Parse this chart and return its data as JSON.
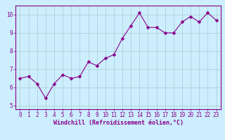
{
  "x": [
    0,
    1,
    2,
    3,
    4,
    5,
    6,
    7,
    8,
    9,
    10,
    11,
    12,
    13,
    14,
    15,
    16,
    17,
    18,
    19,
    20,
    21,
    22,
    23
  ],
  "y": [
    6.5,
    6.6,
    6.2,
    5.4,
    6.2,
    6.7,
    6.5,
    6.6,
    7.4,
    7.2,
    7.6,
    7.8,
    8.7,
    9.4,
    10.1,
    9.3,
    9.3,
    9.0,
    9.0,
    9.6,
    9.9,
    9.6,
    10.1,
    9.7
  ],
  "line_color": "#880088",
  "marker_color": "#880088",
  "bg_color": "#cceeff",
  "grid_color": "#aacccc",
  "xlabel": "Windchill (Refroidissement éolien,°C)",
  "xlim": [
    -0.5,
    23.5
  ],
  "ylim": [
    4.8,
    10.5
  ],
  "yticks": [
    5,
    6,
    7,
    8,
    9,
    10
  ],
  "xticks": [
    0,
    1,
    2,
    3,
    4,
    5,
    6,
    7,
    8,
    9,
    10,
    11,
    12,
    13,
    14,
    15,
    16,
    17,
    18,
    19,
    20,
    21,
    22,
    23
  ],
  "tick_fontsize": 5.5,
  "xlabel_fontsize": 6.0,
  "line_width": 0.8,
  "marker_size": 2.5,
  "spine_color": "#880088",
  "label_color": "#880088"
}
